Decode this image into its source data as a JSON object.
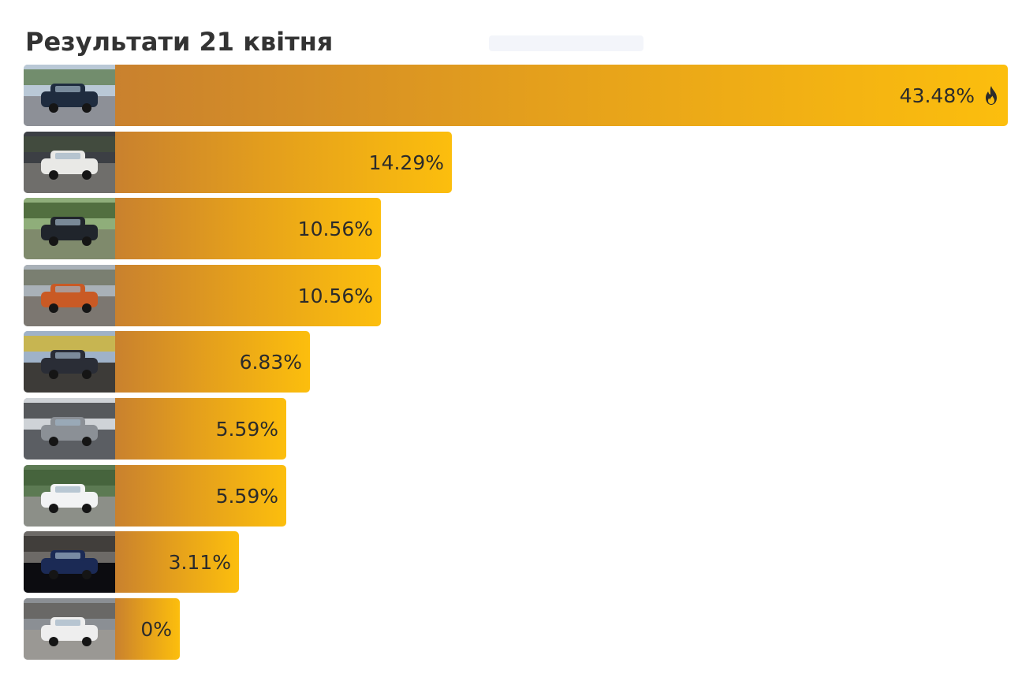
{
  "header": {
    "title": "Результати 21 квітня"
  },
  "chart_data": {
    "type": "bar",
    "orientation": "horizontal",
    "title": "Результати 21 квітня",
    "categories": [
      "",
      "",
      "",
      "",
      "",
      "",
      "",
      "",
      ""
    ],
    "values": [
      43.48,
      14.29,
      10.56,
      10.56,
      6.83,
      5.59,
      5.59,
      3.11,
      0
    ],
    "labels": [
      "43.48%",
      "14.29%",
      "10.56%",
      "10.56%",
      "6.83%",
      "5.59%",
      "5.59%",
      "3.11%",
      "0%"
    ],
    "leader_icon": "fire-icon",
    "bar_colors": [
      "#c9812e",
      "#fcbe0d"
    ],
    "thumbnail_icons": [
      "dark-suv-photo",
      "white-hatchback-photo",
      "black-sedan-photo",
      "orange-hatchback-photo",
      "dark-minivan-photo",
      "engine-bay-photo",
      "white-sedan-photo",
      "dashboard-photo",
      "white-suv-photo"
    ]
  }
}
